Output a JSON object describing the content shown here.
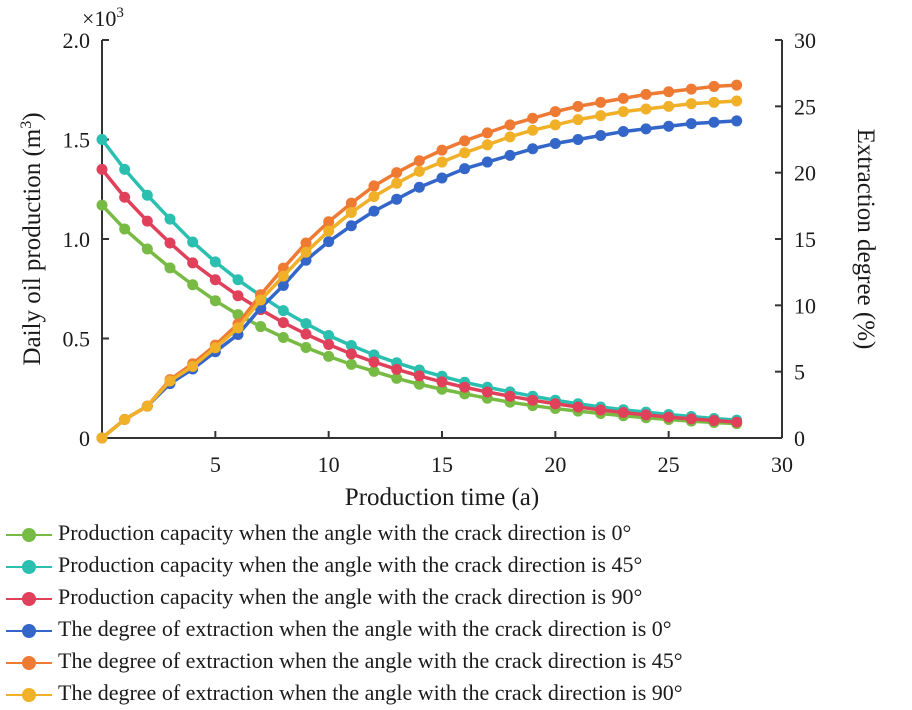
{
  "chart_data": {
    "type": "line",
    "x_label": "Production time (a)",
    "y_left_label": "Daily oil production (m",
    "y_left_label_sup": "3",
    "y_left_label_end": ")",
    "y_left_multiplier": "×10",
    "y_left_multiplier_exp": "3",
    "y_right_label": "Extraction degree (%)",
    "xlim": [
      0,
      30
    ],
    "ylim_left": [
      0,
      2.0
    ],
    "ylim_right": [
      0,
      30
    ],
    "x_ticks": [
      5,
      10,
      15,
      20,
      25,
      30
    ],
    "y_left_ticks": [
      "0",
      "0.5",
      "1.0",
      "1.5",
      "2.0"
    ],
    "y_left_tick_values": [
      0,
      0.5,
      1.0,
      1.5,
      2.0
    ],
    "y_right_ticks": [
      "0",
      "5",
      "10",
      "15",
      "20",
      "25",
      "30"
    ],
    "y_right_tick_values": [
      0,
      5,
      10,
      15,
      20,
      25,
      30
    ],
    "x": [
      0,
      1,
      2,
      3,
      4,
      5,
      6,
      7,
      8,
      9,
      10,
      11,
      12,
      13,
      14,
      15,
      16,
      17,
      18,
      19,
      20,
      21,
      22,
      23,
      24,
      25,
      26,
      27,
      28
    ],
    "series": [
      {
        "name": "Production capacity when the angle with the crack direction is 0°",
        "axis": "left",
        "color": "#77bb44",
        "values": [
          1.17,
          1.05,
          0.95,
          0.855,
          0.77,
          0.69,
          0.62,
          0.56,
          0.505,
          0.455,
          0.41,
          0.37,
          0.335,
          0.3,
          0.27,
          0.245,
          0.222,
          0.2,
          0.18,
          0.163,
          0.148,
          0.135,
          0.123,
          0.112,
          0.102,
          0.093,
          0.085,
          0.078,
          0.072
        ]
      },
      {
        "name": "Production capacity when the angle with the crack direction is 45°",
        "axis": "left",
        "color": "#2bbfb0",
        "values": [
          1.5,
          1.35,
          1.22,
          1.1,
          0.985,
          0.885,
          0.795,
          0.715,
          0.64,
          0.575,
          0.515,
          0.465,
          0.418,
          0.378,
          0.342,
          0.31,
          0.28,
          0.255,
          0.232,
          0.21,
          0.19,
          0.172,
          0.156,
          0.142,
          0.13,
          0.118,
          0.108,
          0.098,
          0.09
        ]
      },
      {
        "name": "Production capacity when the angle with the crack direction is 90°",
        "axis": "left",
        "color": "#e0405a",
        "values": [
          1.35,
          1.21,
          1.09,
          0.98,
          0.88,
          0.795,
          0.715,
          0.645,
          0.58,
          0.522,
          0.47,
          0.423,
          0.382,
          0.345,
          0.312,
          0.282,
          0.255,
          0.231,
          0.21,
          0.19,
          0.172,
          0.156,
          0.141,
          0.128,
          0.116,
          0.105,
          0.096,
          0.088,
          0.08
        ]
      },
      {
        "name": "The degree of extraction when the angle with the crack direction is 0°",
        "axis": "right",
        "color": "#3366c8",
        "values": [
          0,
          1.4,
          2.4,
          4.1,
          5.2,
          6.5,
          7.8,
          9.8,
          11.5,
          13.4,
          14.8,
          16.0,
          17.1,
          18.0,
          18.9,
          19.6,
          20.3,
          20.8,
          21.3,
          21.8,
          22.2,
          22.5,
          22.8,
          23.1,
          23.3,
          23.5,
          23.7,
          23.8,
          23.9
        ]
      },
      {
        "name": "The degree of extraction when the angle with the crack direction is 45°",
        "axis": "right",
        "color": "#ee7a33",
        "values": [
          0,
          1.4,
          2.4,
          4.4,
          5.6,
          7.0,
          8.6,
          10.8,
          12.8,
          14.7,
          16.3,
          17.7,
          19.0,
          20.0,
          20.9,
          21.7,
          22.4,
          23.0,
          23.6,
          24.1,
          24.6,
          25.0,
          25.3,
          25.6,
          25.9,
          26.1,
          26.3,
          26.5,
          26.6
        ]
      },
      {
        "name": "The degree of extraction when the angle with the crack direction is 90°",
        "axis": "right",
        "color": "#f0b028",
        "values": [
          0,
          1.4,
          2.4,
          4.3,
          5.4,
          6.8,
          8.3,
          10.4,
          12.2,
          14.0,
          15.6,
          17.0,
          18.2,
          19.2,
          20.1,
          20.8,
          21.5,
          22.1,
          22.7,
          23.2,
          23.6,
          24.0,
          24.3,
          24.6,
          24.8,
          25.0,
          25.2,
          25.3,
          25.4
        ]
      }
    ],
    "grid": false,
    "legend_position": "bottom"
  }
}
